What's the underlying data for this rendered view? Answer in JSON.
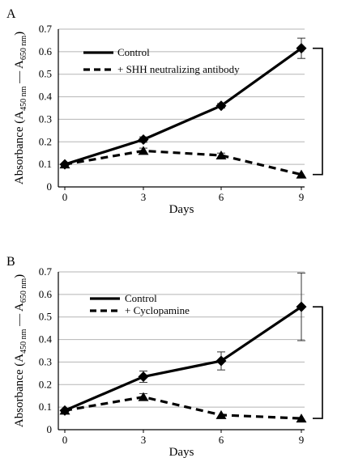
{
  "chart_data": [
    {
      "type": "line",
      "panel_label": "A",
      "title": "",
      "xlabel": "Days",
      "ylabel_parts": {
        "prefix": "Absorbance (A",
        "sub1": "450 nm",
        "mid": " — A",
        "sub2": "650 nm",
        "suffix": ")"
      },
      "x": [
        0,
        3,
        6,
        9
      ],
      "xticks": [
        "0",
        "3",
        "6",
        "9"
      ],
      "yticks": [
        "0",
        "0.1",
        "0.2",
        "0.3",
        "0.4",
        "0.5",
        "0.6",
        "0.7"
      ],
      "xlim": [
        0,
        9
      ],
      "ylim": [
        0,
        0.7
      ],
      "grid": "horizontal",
      "legend_position": "top-left",
      "significance_bracket": "right",
      "series": [
        {
          "name": "Control",
          "style": "solid",
          "values": [
            0.1,
            0.21,
            0.36,
            0.615
          ],
          "errors": [
            0.005,
            0.012,
            0.01,
            0.045
          ]
        },
        {
          "name": "+ SHH neutralizing antibody",
          "style": "dashed",
          "values": [
            0.1,
            0.16,
            0.14,
            0.055
          ],
          "errors": [
            0.005,
            0.012,
            0.01,
            0.005
          ]
        }
      ]
    },
    {
      "type": "line",
      "panel_label": "B",
      "title": "",
      "xlabel": "Days",
      "ylabel_parts": {
        "prefix": "Absorbance (A",
        "sub1": "450 nm",
        "mid": " — A",
        "sub2": "650 nm",
        "suffix": ")"
      },
      "x": [
        0,
        3,
        6,
        9
      ],
      "xticks": [
        "0",
        "3",
        "6",
        "9"
      ],
      "yticks": [
        "0",
        "0.1",
        "0.2",
        "0.3",
        "0.4",
        "0.5",
        "0.6",
        "0.7"
      ],
      "xlim": [
        0,
        9
      ],
      "ylim": [
        0,
        0.7
      ],
      "grid": "horizontal",
      "legend_position": "top-left",
      "significance_bracket": "right",
      "series": [
        {
          "name": "Control",
          "style": "solid",
          "values": [
            0.085,
            0.235,
            0.305,
            0.545
          ],
          "errors": [
            0.005,
            0.025,
            0.04,
            0.15
          ]
        },
        {
          "name": "+ Cyclopamine",
          "style": "dashed",
          "values": [
            0.085,
            0.145,
            0.065,
            0.05
          ],
          "errors": [
            0.005,
            0.015,
            0.005,
            0.005
          ]
        }
      ]
    }
  ]
}
